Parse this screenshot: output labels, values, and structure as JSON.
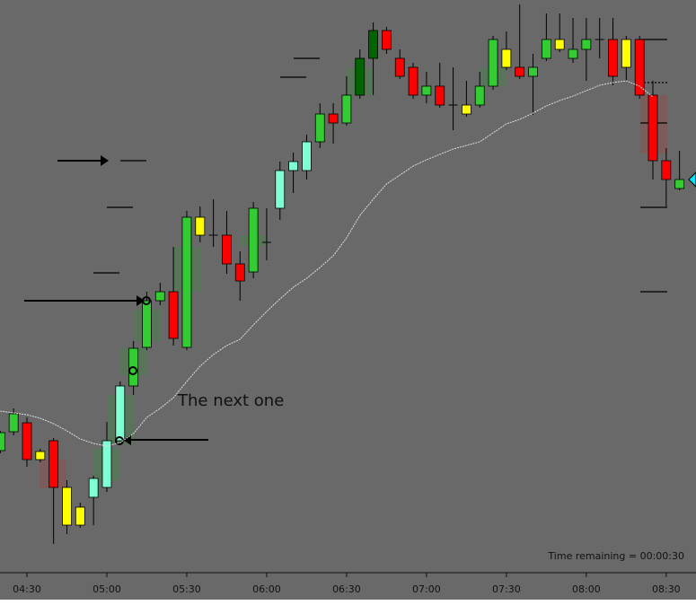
{
  "chart_data": {
    "type": "candlestick",
    "categories": [
      null,
      null,
      "04:30",
      null,
      null,
      null,
      null,
      null,
      "05:00",
      null,
      null,
      null,
      null,
      null,
      "05:30",
      null,
      null,
      null,
      null,
      null,
      "06:00",
      null,
      null,
      null,
      null,
      null,
      "06:30",
      null,
      null,
      null,
      null,
      null,
      "07:00",
      null,
      null,
      null,
      null,
      null,
      "07:30",
      null,
      null,
      null,
      null,
      null,
      "08:00",
      null,
      null,
      null,
      null,
      null,
      "08:30",
      null
    ],
    "open": [
      136,
      157,
      167,
      126,
      147,
      95,
      73,
      84,
      95,
      147,
      208,
      251,
      303,
      313,
      251,
      396,
      376,
      376,
      344,
      335,
      368,
      406,
      448,
      448,
      480,
      511,
      501,
      532,
      573,
      604,
      573,
      563,
      532,
      542,
      521,
      511,
      521,
      542,
      563,
      563,
      553,
      573,
      583,
      573,
      583,
      594,
      594,
      594,
      594,
      532,
      459,
      428
    ],
    "high": [
      158,
      183,
      173,
      138,
      150,
      103,
      78,
      108,
      168,
      213,
      258,
      313,
      323,
      363,
      403,
      408,
      416,
      403,
      358,
      413,
      406,
      458,
      468,
      488,
      523,
      523,
      553,
      583,
      613,
      608,
      583,
      568,
      558,
      568,
      563,
      548,
      558,
      598,
      603,
      633,
      578,
      623,
      623,
      618,
      618,
      618,
      618,
      598,
      598,
      548,
      473,
      470
    ],
    "low": [
      133,
      153,
      118,
      123,
      32,
      43,
      50,
      53,
      90,
      143,
      198,
      248,
      298,
      253,
      248,
      368,
      363,
      333,
      303,
      328,
      348,
      393,
      423,
      438,
      473,
      478,
      498,
      528,
      532,
      578,
      550,
      528,
      523,
      518,
      493,
      508,
      518,
      538,
      560,
      550,
      510,
      570,
      580,
      568,
      548,
      573,
      543,
      548,
      528,
      438,
      408,
      426
    ],
    "close": [
      156,
      177,
      126,
      135,
      95,
      53,
      53,
      105,
      147,
      208,
      250,
      303,
      313,
      261,
      396,
      376,
      376,
      344,
      325,
      406,
      368,
      448,
      458,
      480,
      511,
      501,
      532,
      573,
      604,
      583,
      553,
      532,
      542,
      521,
      521,
      521,
      542,
      594,
      583,
      553,
      563,
      594,
      594,
      583,
      594,
      594,
      553,
      563,
      532,
      459,
      438,
      438
    ],
    "colors": [
      "#33cc33",
      "#33cc33",
      "#ff0000",
      "#ffff00",
      "#ff0000",
      "#ffff00",
      "#ffff00",
      "#7fffd4",
      "#7fffd4",
      "#7fffd4",
      "#33cc33",
      "#33cc33",
      "#33cc33",
      "#ff0000",
      "#33cc33",
      "#ffff00",
      "#33cc33",
      "#ff0000",
      "#ff0000",
      "#33cc33",
      "#33cc33",
      "#7fffd4",
      "#7fffd4",
      "#7fffd4",
      "#33cc33",
      "#ff0000",
      "#33cc33",
      "#006400",
      "#006400",
      "#ff0000",
      "#ff0000",
      "#ff0000",
      "#33cc33",
      "#ff0000",
      "#33cc33",
      "#ffff00",
      "#33cc33",
      "#33cc33",
      "#ffff00",
      "#ff0000",
      "#33cc33",
      "#33cc33",
      "#ffff00",
      "#33cc33",
      "#33cc33",
      "#33cc33",
      "#ff0000",
      "#ffff00",
      "#ff0000",
      "#ff0000",
      "#ff0000",
      "#33cc33"
    ],
    "moving_average": {
      "color": "#dddddd",
      "values": [
        180,
        178,
        176,
        172,
        166,
        158,
        149,
        144,
        141,
        145,
        155,
        173,
        183,
        195,
        213,
        230,
        243,
        253,
        260,
        276,
        291,
        305,
        318,
        328,
        340,
        353,
        373,
        398,
        416,
        433,
        443,
        453,
        460,
        466,
        472,
        476,
        480,
        490,
        500,
        505,
        512,
        520,
        526,
        531,
        537,
        543,
        546,
        548,
        542,
        530,
        null,
        null
      ]
    },
    "ylim": [
      0,
      638
    ],
    "annotations": [
      "The next one"
    ],
    "status": "Time remaining = 00:00:30"
  }
}
